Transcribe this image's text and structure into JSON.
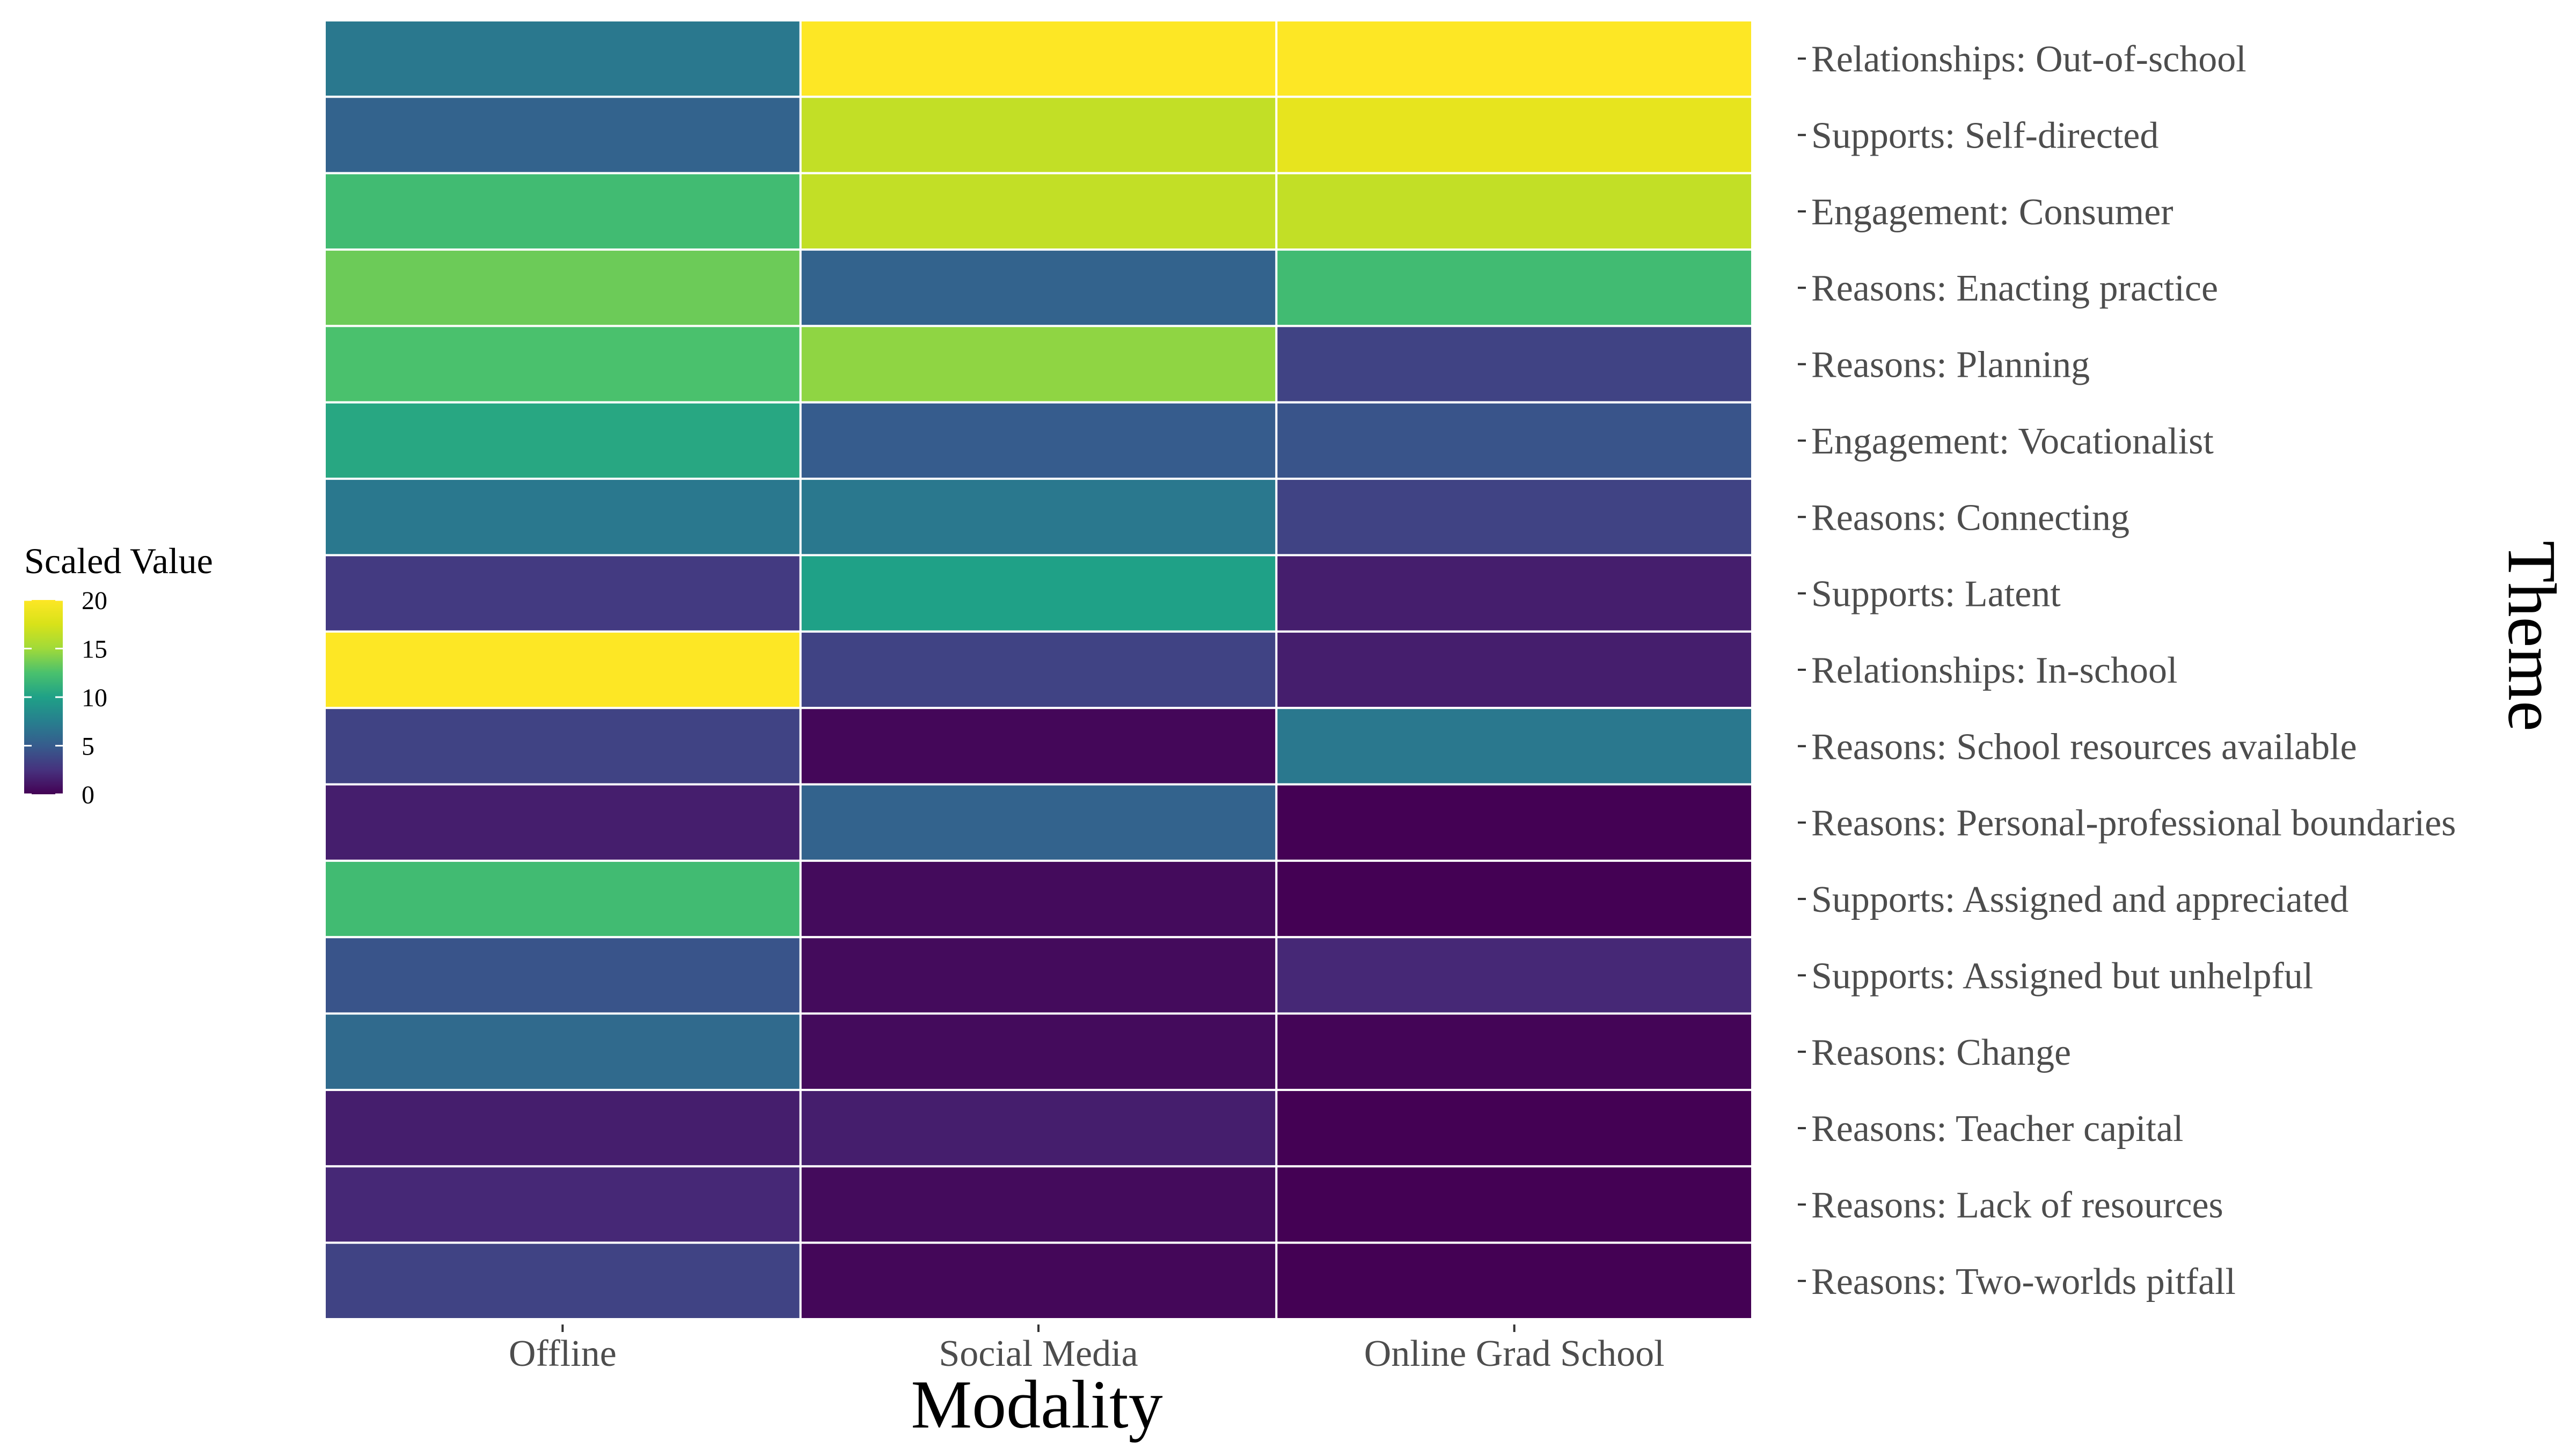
{
  "chart_data": {
    "type": "heatmap",
    "xlabel": "Modality",
    "ylabel": "Theme",
    "x_categories": [
      "Offline",
      "Social Media",
      "Online Grad School"
    ],
    "y_categories": [
      "Relationships: Out-of-school",
      "Supports: Self-directed",
      "Engagement: Consumer",
      "Reasons: Enacting practice",
      "Reasons: Planning",
      "Engagement: Vocationalist",
      "Reasons: Connecting",
      "Supports: Latent",
      "Relationships: In-school",
      "Reasons: School resources available",
      "Reasons: Personal-professional boundaries",
      "Supports: Assigned and appreciated",
      "Supports: Assigned but unhelpful",
      "Reasons: Change",
      "Reasons: Teacher capital",
      "Reasons: Lack of resources",
      "Reasons: Two-worlds pitfall"
    ],
    "values": [
      [
        7,
        20,
        20
      ],
      [
        5.5,
        16.5,
        18.5
      ],
      [
        12,
        16.5,
        16.5
      ],
      [
        13.5,
        5.5,
        12
      ],
      [
        12.5,
        14.5,
        3.5
      ],
      [
        10.5,
        5,
        4.5
      ],
      [
        7,
        7,
        3.5
      ],
      [
        3,
        10,
        1.5
      ],
      [
        20,
        3.5,
        1.5
      ],
      [
        3.5,
        0.3,
        7
      ],
      [
        1.5,
        5.5,
        0
      ],
      [
        12,
        0.5,
        0
      ],
      [
        4.5,
        0.5,
        2
      ],
      [
        6,
        0.5,
        0.2
      ],
      [
        1.5,
        1.5,
        0
      ],
      [
        2,
        0.5,
        0
      ],
      [
        3.5,
        0.3,
        0
      ]
    ],
    "legend": {
      "title": "Scaled Value",
      "ticks": [
        0,
        5,
        10,
        15,
        20
      ],
      "range": [
        0,
        20
      ],
      "placement": "left"
    },
    "colorscale": "viridis",
    "grid": false
  }
}
